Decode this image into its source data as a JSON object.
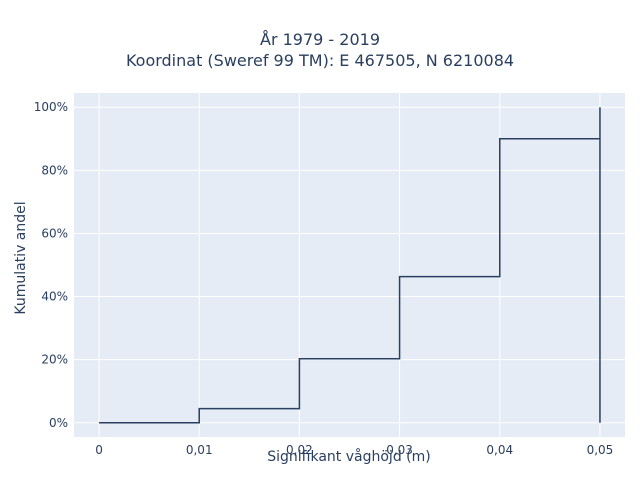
{
  "chart_data": {
    "type": "line",
    "line_shape": "step",
    "title_line1": "År 1979 - 2019",
    "title_line2": "Koordinat (Sweref 99 TM): E 467505, N 6210084",
    "xlabel": "Signifikant våghöjd (m)",
    "ylabel": "Kumulativ andel",
    "xlim": [
      -0.0025,
      0.0525
    ],
    "ylim": [
      -0.045,
      1.045
    ],
    "x_ticks": [
      0,
      0.01,
      0.02,
      0.03,
      0.04,
      0.05
    ],
    "x_tick_labels": [
      "0",
      "0,01",
      "0,02",
      "0,03",
      "0,04",
      "0,05"
    ],
    "y_ticks": [
      0,
      0.2,
      0.4,
      0.6,
      0.8,
      1.0
    ],
    "y_tick_labels": [
      "0%",
      "20%",
      "40%",
      "60%",
      "80%",
      "100%"
    ],
    "grid": true,
    "colors": {
      "line": "#2a3f5f",
      "plot_bg": "#e5ecf6",
      "grid": "#ffffff"
    },
    "series": [
      {
        "x": [
          0,
          0.01,
          0.02,
          0.03,
          0.04,
          0.05,
          0.05
        ],
        "y": [
          0.0,
          0.045,
          0.203,
          0.463,
          0.9,
          1.0,
          0.0
        ]
      }
    ]
  }
}
